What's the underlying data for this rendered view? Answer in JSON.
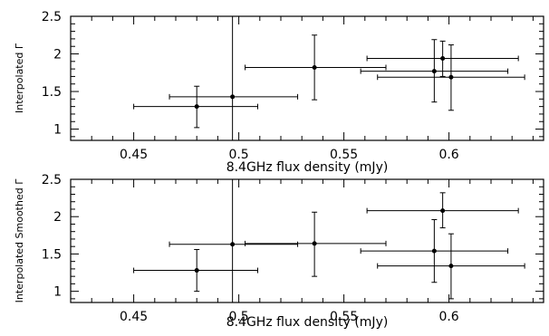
{
  "chart_data": [
    {
      "type": "scatter",
      "title": "",
      "xlabel": "8.4GHz flux density (mJy)",
      "ylabel": "Interpolated Γ",
      "xlim": [
        0.42,
        0.645
      ],
      "ylim": [
        0.85,
        2.5
      ],
      "xticks": [
        {
          "value": 0.45,
          "label": "0.45"
        },
        {
          "value": 0.5,
          "label": "0.5"
        },
        {
          "value": 0.55,
          "label": "0.55"
        },
        {
          "value": 0.6,
          "label": "0.6"
        }
      ],
      "yticks": [
        {
          "value": 1,
          "label": "1"
        },
        {
          "value": 1.5,
          "label": "1.5"
        },
        {
          "value": 2,
          "label": "2"
        },
        {
          "value": 2.5,
          "label": "2.5"
        }
      ],
      "grid": false,
      "series": [
        {
          "points": [
            {
              "x": 0.48,
              "y": 1.3,
              "xerr": [
                0.45,
                0.509
              ],
              "yerr": [
                1.02,
                1.57
              ]
            },
            {
              "x": 0.497,
              "y": 1.43,
              "xerr": [
                0.467,
                0.528
              ],
              "yerr": [
                0.85,
                2.5
              ]
            },
            {
              "x": 0.536,
              "y": 1.82,
              "xerr": [
                0.503,
                0.57
              ],
              "yerr": [
                1.39,
                2.25
              ]
            },
            {
              "x": 0.593,
              "y": 1.77,
              "xerr": [
                0.558,
                0.628
              ],
              "yerr": [
                1.36,
                2.19
              ]
            },
            {
              "x": 0.597,
              "y": 1.94,
              "xerr": [
                0.561,
                0.633
              ],
              "yerr": [
                1.7,
                2.17
              ]
            },
            {
              "x": 0.601,
              "y": 1.69,
              "xerr": [
                0.566,
                0.636
              ],
              "yerr": [
                1.25,
                2.12
              ]
            }
          ]
        }
      ]
    },
    {
      "type": "scatter",
      "title": "",
      "xlabel": "8.4GHz flux density (mJy)",
      "ylabel": "Interpolated Smoothed Γ",
      "xlim": [
        0.42,
        0.645
      ],
      "ylim": [
        0.85,
        2.5
      ],
      "xticks": [
        {
          "value": 0.45,
          "label": "0.45"
        },
        {
          "value": 0.5,
          "label": "0.5"
        },
        {
          "value": 0.55,
          "label": "0.55"
        },
        {
          "value": 0.6,
          "label": "0.6"
        }
      ],
      "yticks": [
        {
          "value": 1,
          "label": "1"
        },
        {
          "value": 1.5,
          "label": "1.5"
        },
        {
          "value": 2,
          "label": "2"
        },
        {
          "value": 2.5,
          "label": "2.5"
        }
      ],
      "grid": false,
      "series": [
        {
          "points": [
            {
              "x": 0.48,
              "y": 1.28,
              "xerr": [
                0.45,
                0.509
              ],
              "yerr": [
                1.0,
                1.56
              ]
            },
            {
              "x": 0.497,
              "y": 1.63,
              "xerr": [
                0.467,
                0.528
              ],
              "yerr": [
                0.85,
                2.5
              ]
            },
            {
              "x": 0.536,
              "y": 1.64,
              "xerr": [
                0.503,
                0.57
              ],
              "yerr": [
                1.2,
                2.06
              ]
            },
            {
              "x": 0.593,
              "y": 1.54,
              "xerr": [
                0.558,
                0.628
              ],
              "yerr": [
                1.12,
                1.96
              ]
            },
            {
              "x": 0.597,
              "y": 2.08,
              "xerr": [
                0.561,
                0.633
              ],
              "yerr": [
                1.85,
                2.32
              ]
            },
            {
              "x": 0.601,
              "y": 1.34,
              "xerr": [
                0.566,
                0.636
              ],
              "yerr": [
                0.9,
                1.77
              ]
            }
          ]
        }
      ]
    }
  ]
}
